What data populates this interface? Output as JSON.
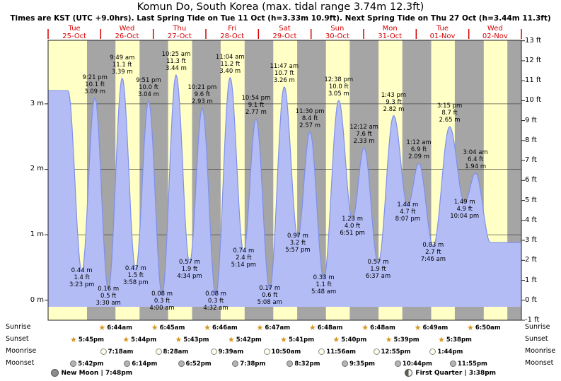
{
  "title": "Komun Do, South Korea (max. tidal range 3.74m 12.3ft)",
  "subtitle": "Times are KST (UTC +9.0hrs). Last Spring Tide on Tue 11 Oct (h=3.33m 10.9ft). Next Spring Tide on Thu 27 Oct (h=3.44m 11.3ft)",
  "colors": {
    "day_band": "#ffffc6",
    "night_band": "#a5a5a5",
    "tide_fill": "#b3bcf5",
    "tide_line": "#7e90ea",
    "day_label": "#d40000",
    "sun_icon": "#d4941e",
    "grid": "#3a3a3a",
    "border": "#222222"
  },
  "axes": {
    "meters": [
      {
        "value": 3,
        "label": "3 m"
      },
      {
        "value": 2,
        "label": "2 m"
      },
      {
        "value": 1,
        "label": "1 m"
      },
      {
        "value": 0,
        "label": "0 m"
      }
    ],
    "feet": [
      {
        "value": 13,
        "label": "13 ft"
      },
      {
        "value": 12,
        "label": "12 ft"
      },
      {
        "value": 11,
        "label": "11 ft"
      },
      {
        "value": 10,
        "label": "10 ft"
      },
      {
        "value": 9,
        "label": "9 ft"
      },
      {
        "value": 8,
        "label": "8 ft"
      },
      {
        "value": 7,
        "label": "7 ft"
      },
      {
        "value": 6,
        "label": "6 ft"
      },
      {
        "value": 5,
        "label": "5 ft"
      },
      {
        "value": 4,
        "label": "4 ft"
      },
      {
        "value": 3,
        "label": "3 ft"
      },
      {
        "value": 2,
        "label": "2 ft"
      },
      {
        "value": 1,
        "label": "1 ft"
      },
      {
        "value": 0,
        "label": "0 ft"
      },
      {
        "value": -1,
        "label": "-1 ft"
      }
    ]
  },
  "chart_data": {
    "type": "area",
    "x_unit": "hours from Tue 25-Oct 00:00 KST",
    "x_range": [
      0,
      216
    ],
    "y_range_m": [
      -0.305,
      3.97
    ],
    "days": [
      {
        "dow": "Tue",
        "date": "25-Oct"
      },
      {
        "dow": "Wed",
        "date": "26-Oct"
      },
      {
        "dow": "Thu",
        "date": "27-Oct"
      },
      {
        "dow": "Fri",
        "date": "28-Oct"
      },
      {
        "dow": "Sat",
        "date": "29-Oct"
      },
      {
        "dow": "Sun",
        "date": "30-Oct"
      },
      {
        "dow": "Mon",
        "date": "31-Oct"
      },
      {
        "dow": "Tue",
        "date": "01-Nov"
      },
      {
        "dow": "Wed",
        "date": "02-Nov"
      }
    ],
    "night_bands": [
      [
        17.75,
        30.733
      ],
      [
        41.733,
        54.75
      ],
      [
        65.717,
        78.767
      ],
      [
        89.7,
        102.783
      ],
      [
        113.683,
        126.8
      ],
      [
        137.667,
        150.8
      ],
      [
        161.65,
        174.817
      ],
      [
        185.633,
        198.833
      ],
      [
        209.617,
        216
      ]
    ],
    "tide_events": [
      {
        "type": "high",
        "abs_h": 9.08,
        "m": 3.2,
        "labeled": false
      },
      {
        "type": "low",
        "abs_h": 15.383,
        "m": 0.44,
        "labeled": true,
        "m_label": "0.44 m",
        "ft_label": "1.4 ft",
        "time": "3:23 pm"
      },
      {
        "type": "high",
        "abs_h": 21.35,
        "m": 3.09,
        "labeled": true,
        "time": "9:21 pm",
        "ft_label": "10.1 ft",
        "m_label": "3.09 m"
      },
      {
        "type": "low",
        "abs_h": 27.5,
        "m": 0.16,
        "labeled": true,
        "m_label": "0.16 m",
        "ft_label": "0.5 ft",
        "time": "3:30 am"
      },
      {
        "type": "high",
        "abs_h": 33.817,
        "m": 3.39,
        "labeled": true,
        "time": "9:49 am",
        "ft_label": "11.1 ft",
        "m_label": "3.39 m"
      },
      {
        "type": "low",
        "abs_h": 39.967,
        "m": 0.47,
        "labeled": true,
        "m_label": "0.47 m",
        "ft_label": "1.5 ft",
        "time": "3:58 pm"
      },
      {
        "type": "high",
        "abs_h": 45.85,
        "m": 3.04,
        "labeled": true,
        "time": "9:51 pm",
        "ft_label": "10.0 ft",
        "m_label": "3.04 m"
      },
      {
        "type": "low",
        "abs_h": 52.0,
        "m": 0.08,
        "labeled": true,
        "m_label": "0.08 m",
        "ft_label": "0.3 ft",
        "time": "4:00 am"
      },
      {
        "type": "high",
        "abs_h": 58.417,
        "m": 3.44,
        "labeled": true,
        "time": "10:25 am",
        "ft_label": "11.3 ft",
        "m_label": "3.44 m"
      },
      {
        "type": "low",
        "abs_h": 64.567,
        "m": 0.57,
        "labeled": true,
        "m_label": "0.57 m",
        "ft_label": "1.9 ft",
        "time": "4:34 pm"
      },
      {
        "type": "high",
        "abs_h": 70.35,
        "m": 2.93,
        "labeled": true,
        "time": "10:21 pm",
        "ft_label": "9.6 ft",
        "m_label": "2.93 m"
      },
      {
        "type": "low",
        "abs_h": 76.533,
        "m": 0.08,
        "labeled": true,
        "m_label": "0.08 m",
        "ft_label": "0.3 ft",
        "time": "4:32 am"
      },
      {
        "type": "high",
        "abs_h": 83.067,
        "m": 3.4,
        "labeled": true,
        "time": "11:04 am",
        "ft_label": "11.2 ft",
        "m_label": "3.40 m"
      },
      {
        "type": "low",
        "abs_h": 89.233,
        "m": 0.74,
        "labeled": true,
        "m_label": "0.74 m",
        "ft_label": "2.4 ft",
        "time": "5:14 pm"
      },
      {
        "type": "high",
        "abs_h": 94.9,
        "m": 2.77,
        "labeled": true,
        "time": "10:54 pm",
        "ft_label": "9.1 ft",
        "m_label": "2.77 m"
      },
      {
        "type": "low",
        "abs_h": 101.133,
        "m": 0.17,
        "labeled": true,
        "m_label": "0.17 m",
        "ft_label": "0.6 ft",
        "time": "5:08 am"
      },
      {
        "type": "high",
        "abs_h": 107.783,
        "m": 3.26,
        "labeled": true,
        "time": "11:47 am",
        "ft_label": "10.7 ft",
        "m_label": "3.26 m"
      },
      {
        "type": "low",
        "abs_h": 113.95,
        "m": 0.97,
        "labeled": true,
        "m_label": "0.97 m",
        "ft_label": "3.2 ft",
        "time": "5:57 pm"
      },
      {
        "type": "high",
        "abs_h": 119.5,
        "m": 2.57,
        "labeled": true,
        "time": "11:30 pm",
        "ft_label": "8.4 ft",
        "m_label": "2.57 m"
      },
      {
        "type": "low",
        "abs_h": 125.8,
        "m": 0.33,
        "labeled": true,
        "m_label": "0.33 m",
        "ft_label": "1.1 ft",
        "time": "5:48 am"
      },
      {
        "type": "high",
        "abs_h": 132.633,
        "m": 3.05,
        "labeled": true,
        "time": "12:38 pm",
        "ft_label": "10.0 ft",
        "m_label": "3.05 m"
      },
      {
        "type": "low",
        "abs_h": 138.85,
        "m": 1.23,
        "labeled": true,
        "m_label": "1.23 m",
        "ft_label": "4.0 ft",
        "time": "6:51 pm"
      },
      {
        "type": "high",
        "abs_h": 144.2,
        "m": 2.33,
        "labeled": true,
        "time": "12:12 am",
        "ft_label": "7.6 ft",
        "m_label": "2.33 m"
      },
      {
        "type": "low",
        "abs_h": 150.617,
        "m": 0.57,
        "labeled": true,
        "m_label": "0.57 m",
        "ft_label": "1.9 ft",
        "time": "6:37 am"
      },
      {
        "type": "high",
        "abs_h": 157.717,
        "m": 2.82,
        "labeled": true,
        "time": "1:43 pm",
        "ft_label": "9.3 ft",
        "m_label": "2.82 m"
      },
      {
        "type": "low",
        "abs_h": 164.117,
        "m": 1.44,
        "labeled": true,
        "m_label": "1.44 m",
        "ft_label": "4.7 ft",
        "time": "8:07 pm"
      },
      {
        "type": "high",
        "abs_h": 169.2,
        "m": 2.09,
        "labeled": true,
        "time": "1:12 am",
        "ft_label": "6.9 ft",
        "m_label": "2.09 m"
      },
      {
        "type": "low",
        "abs_h": 175.767,
        "m": 0.83,
        "labeled": true,
        "m_label": "0.83 m",
        "ft_label": "2.7 ft",
        "time": "7:46 am"
      },
      {
        "type": "high",
        "abs_h": 183.25,
        "m": 2.65,
        "labeled": true,
        "time": "3:15 pm",
        "ft_label": "8.7 ft",
        "m_label": "2.65 m"
      },
      {
        "type": "low",
        "abs_h": 190.067,
        "m": 1.49,
        "labeled": true,
        "m_label": "1.49 m",
        "ft_label": "4.9 ft",
        "time": "10:04 pm"
      },
      {
        "type": "high",
        "abs_h": 195.067,
        "m": 1.94,
        "labeled": true,
        "time": "3:04 am",
        "ft_label": "6.4 ft",
        "m_label": "1.94 m"
      },
      {
        "type": "low",
        "abs_h": 201.9,
        "m": 0.88,
        "labeled": false
      }
    ]
  },
  "sun_moon": {
    "rows": [
      {
        "id": "sunrise",
        "label": "Sunrise",
        "icon": "sun-star",
        "events": [
          {
            "time": "6:44am",
            "abs_h": 30.733
          },
          {
            "time": "6:45am",
            "abs_h": 54.75
          },
          {
            "time": "6:46am",
            "abs_h": 78.767
          },
          {
            "time": "6:47am",
            "abs_h": 102.783
          },
          {
            "time": "6:48am",
            "abs_h": 126.8
          },
          {
            "time": "6:48am",
            "abs_h": 150.8
          },
          {
            "time": "6:49am",
            "abs_h": 174.817
          },
          {
            "time": "6:50am",
            "abs_h": 198.833
          }
        ]
      },
      {
        "id": "sunset",
        "label": "Sunset",
        "icon": "sun-star",
        "events": [
          {
            "time": "5:45pm",
            "abs_h": 17.75
          },
          {
            "time": "5:44pm",
            "abs_h": 41.733
          },
          {
            "time": "5:43pm",
            "abs_h": 65.717
          },
          {
            "time": "5:42pm",
            "abs_h": 89.7
          },
          {
            "time": "5:41pm",
            "abs_h": 113.683
          },
          {
            "time": "5:40pm",
            "abs_h": 137.667
          },
          {
            "time": "5:39pm",
            "abs_h": 161.65
          },
          {
            "time": "5:38pm",
            "abs_h": 185.633
          }
        ]
      },
      {
        "id": "moonrise",
        "label": "Moonrise",
        "icon": "moon-light",
        "events": [
          {
            "time": "7:18am",
            "abs_h": 31.3
          },
          {
            "time": "8:28am",
            "abs_h": 56.467
          },
          {
            "time": "9:39am",
            "abs_h": 81.65
          },
          {
            "time": "10:50am",
            "abs_h": 106.833
          },
          {
            "time": "11:56am",
            "abs_h": 131.933
          },
          {
            "time": "12:55pm",
            "abs_h": 156.917
          },
          {
            "time": "1:44pm",
            "abs_h": 181.733
          }
        ]
      },
      {
        "id": "moonset",
        "label": "Moonset",
        "icon": "moon-dark",
        "events": [
          {
            "time": "5:42pm",
            "abs_h": 17.7
          },
          {
            "time": "6:14pm",
            "abs_h": 42.233
          },
          {
            "time": "6:52pm",
            "abs_h": 66.867
          },
          {
            "time": "7:38pm",
            "abs_h": 91.633
          },
          {
            "time": "8:32pm",
            "abs_h": 116.533
          },
          {
            "time": "9:35pm",
            "abs_h": 141.583
          },
          {
            "time": "10:44pm",
            "abs_h": 166.733
          },
          {
            "time": "11:55pm",
            "abs_h": 191.917
          }
        ]
      }
    ]
  },
  "moon_phases": [
    {
      "label": "New Moon | 7:48pm",
      "icon": "new-moon",
      "abs_h": 19.8
    },
    {
      "label": "First Quarter | 3:38pm",
      "icon": "first-quarter",
      "abs_h": 183.633
    }
  ]
}
